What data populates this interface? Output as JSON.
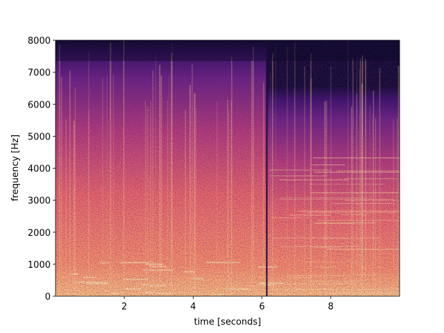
{
  "chart_data": {
    "type": "spectrogram",
    "xlabel": "time [seconds]",
    "ylabel": "frequency [Hz]",
    "xlim": [
      0,
      10
    ],
    "ylim": [
      0,
      8000
    ],
    "xticks": [
      2,
      4,
      6,
      8
    ],
    "yticks": [
      0,
      1000,
      2000,
      3000,
      4000,
      5000,
      6000,
      7000,
      8000
    ],
    "colormap": "magma"
  }
}
